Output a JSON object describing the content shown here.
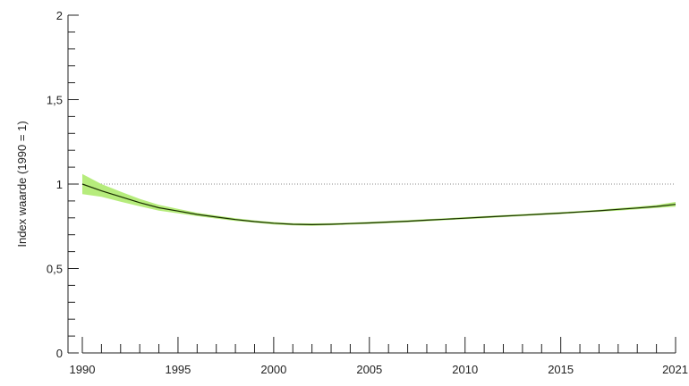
{
  "chart_data": {
    "type": "line",
    "title": "",
    "xlabel": "",
    "ylabel": "Index waarde (1990 = 1)",
    "xlim": [
      1990,
      2021
    ],
    "ylim": [
      0,
      2
    ],
    "x_ticks": [
      1990,
      1995,
      2000,
      2005,
      2010,
      2015,
      2021
    ],
    "x_tick_labels": [
      "1990",
      "1995",
      "2000",
      "2005",
      "2010",
      "2015",
      "2021"
    ],
    "y_ticks": [
      0,
      0.5,
      1,
      1.5,
      2
    ],
    "y_tick_labels": [
      "0",
      "0,5",
      "1",
      "1,5",
      "2"
    ],
    "grid": false,
    "reference_line": {
      "y": 1,
      "style": "dotted"
    },
    "series": [
      {
        "x": [
          1990,
          1991,
          1992,
          1993,
          1994,
          1995,
          1996,
          1997,
          1998,
          1999,
          2000,
          2001,
          2002,
          2003,
          2004,
          2005,
          2006,
          2007,
          2008,
          2009,
          2010,
          2011,
          2012,
          2013,
          2014,
          2015,
          2016,
          2017,
          2018,
          2019,
          2020,
          2021
        ],
        "values": [
          1.0,
          0.96,
          0.925,
          0.89,
          0.86,
          0.84,
          0.82,
          0.805,
          0.79,
          0.778,
          0.768,
          0.762,
          0.76,
          0.762,
          0.766,
          0.77,
          0.775,
          0.78,
          0.786,
          0.792,
          0.798,
          0.804,
          0.81,
          0.816,
          0.822,
          0.828,
          0.835,
          0.842,
          0.85,
          0.858,
          0.867,
          0.88
        ],
        "lower": [
          0.94,
          0.925,
          0.895,
          0.868,
          0.843,
          0.827,
          0.81,
          0.796,
          0.782,
          0.771,
          0.761,
          0.755,
          0.753,
          0.756,
          0.76,
          0.764,
          0.769,
          0.774,
          0.78,
          0.786,
          0.792,
          0.798,
          0.804,
          0.81,
          0.816,
          0.822,
          0.829,
          0.836,
          0.843,
          0.85,
          0.858,
          0.866
        ],
        "upper": [
          1.06,
          1.0,
          0.955,
          0.912,
          0.877,
          0.853,
          0.83,
          0.814,
          0.798,
          0.785,
          0.775,
          0.769,
          0.767,
          0.768,
          0.772,
          0.776,
          0.781,
          0.786,
          0.792,
          0.798,
          0.804,
          0.81,
          0.816,
          0.822,
          0.828,
          0.834,
          0.841,
          0.848,
          0.857,
          0.866,
          0.876,
          0.894
        ]
      }
    ],
    "colors": {
      "line": "#1a2e00",
      "band": "#b6ec7c",
      "band_edge": "#33cc00",
      "axis": "#222222",
      "reference": "#888888"
    }
  }
}
